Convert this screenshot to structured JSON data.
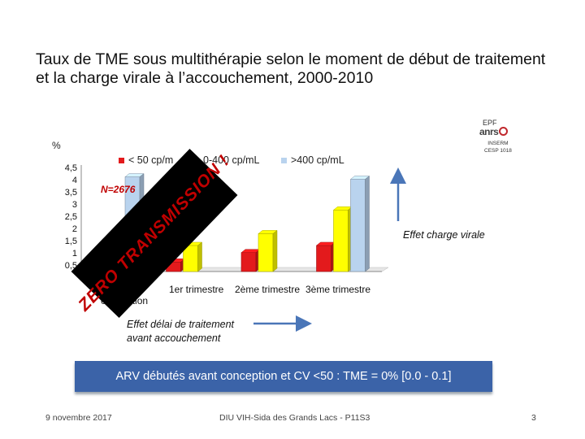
{
  "slide": {
    "title_line1": "Taux de TME sous multithérapie selon le moment de début de traitement",
    "title_line2": "et la charge virale à l’accouchement, 2000-2010",
    "logo_epf": "EPF",
    "logo_anrs": "anrs",
    "inserm_line1": "INSERM",
    "inserm_line2": "CESP 1018",
    "n_label": "N=2676",
    "banner_text": "ZERO TRANSMISSION !",
    "effect_charge": "Effet charge virale",
    "effect_delai_line1": "Effet délai de traitement",
    "effect_delai_line2": "avant accouchement",
    "info_box": "ARV débutés avant conception et CV <50 : TME = 0% [0.0 - 0.1]",
    "footer_date": "9 novembre 2017",
    "footer_center": "DIU VIH-Sida des Grands Lacs - P11S3",
    "footer_page": "3"
  },
  "chart_data": {
    "type": "bar",
    "ylabel": "%",
    "ylim": [
      0,
      4.5
    ],
    "yticks": [
      "0,5",
      "1",
      "1,5",
      "2",
      "2,5",
      "3",
      "3,5",
      "4",
      "4,5"
    ],
    "legend": [
      "< 50 cp/mL",
      "50-400 cp/mL",
      ">400 cp/mL"
    ],
    "legend_display": [
      "< 50 cp/m",
      "0-400 cp/mL",
      ">400 cp/mL"
    ],
    "categories": [
      "Depuis la conception",
      "1er trimestre",
      "2ème trimestre",
      "3ème trimestre"
    ],
    "series": [
      {
        "name": "< 50 cp/mL",
        "color": "#e31a1c",
        "values": [
          0.0,
          0.4,
          0.8,
          1.1
        ]
      },
      {
        "name": "50-400 cp/mL",
        "color": "#ffff00",
        "values": [
          0.6,
          1.1,
          1.6,
          2.6
        ]
      },
      {
        "name": ">400 cp/mL",
        "color": "#b9d3ee",
        "values": [
          4.0,
          0.0,
          0.0,
          3.9
        ]
      }
    ],
    "legend_position": "top",
    "grid": false
  }
}
